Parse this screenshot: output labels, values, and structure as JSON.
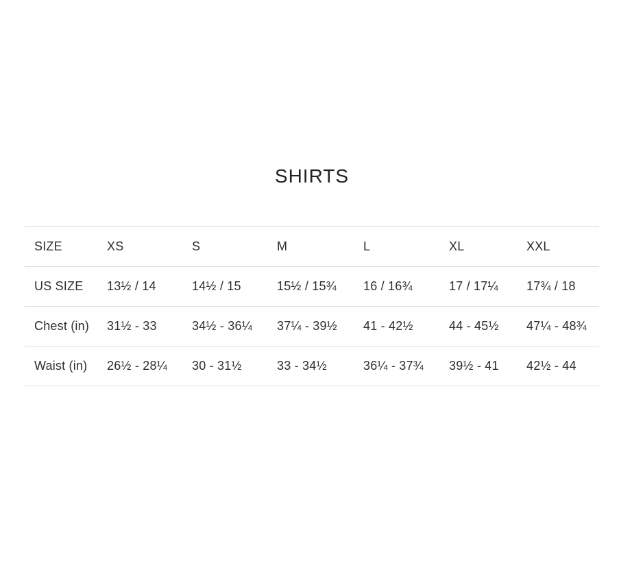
{
  "title": "SHIRTS",
  "chart_data": {
    "type": "table",
    "title": "SHIRTS",
    "columns": [
      "SIZE",
      "XS",
      "S",
      "M",
      "L",
      "XL",
      "XXL"
    ],
    "rows": [
      {
        "label": "US SIZE",
        "values": [
          "13½ / 14",
          "14½ / 15",
          "15½ / 15¾",
          "16 / 16¾",
          "17 / 17¼",
          "17¾ / 18"
        ]
      },
      {
        "label": "Chest (in)",
        "values": [
          "31½ - 33",
          "34½ - 36¼",
          "37¼ - 39½",
          "41 - 42½",
          "44 - 45½",
          "47¼ - 48¾"
        ]
      },
      {
        "label": "Waist (in)",
        "values": [
          "26½ - 28¼",
          "30 - 31½",
          "33 - 34½",
          "36¼ - 37¾",
          "39½ - 41",
          "42½ - 44"
        ]
      }
    ]
  },
  "colors": {
    "background": "#ffffff",
    "title_text": "#222222",
    "table_text": "#2e2e2e",
    "divider": "#dddddd"
  }
}
